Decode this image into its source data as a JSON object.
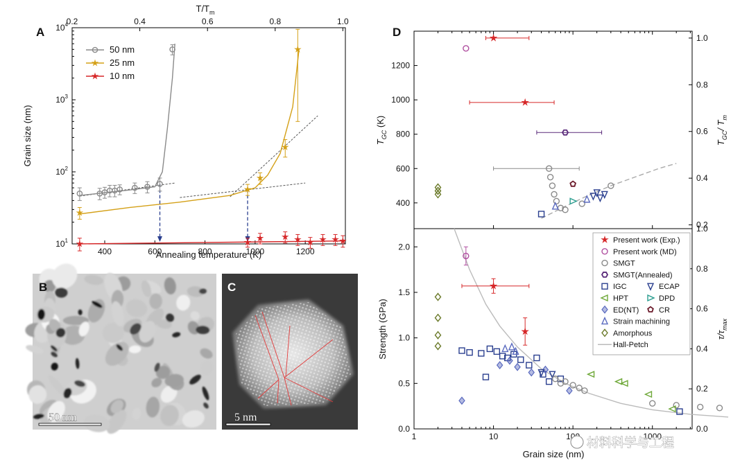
{
  "panels": {
    "A": "A",
    "B": "B",
    "C": "C",
    "D": "D"
  },
  "colors": {
    "gray": "#8a8a8a",
    "gold": "#d4a017",
    "red": "#d62728",
    "navy": "#2a3f8f",
    "purple": "#b04fa0",
    "green": "#6ea838",
    "teal": "#2a9d8f",
    "olive": "#6b7a2a",
    "hp": "#bbbbbb"
  },
  "chart_data": [
    {
      "id": "A",
      "type": "line",
      "title": "",
      "xlabel": "Annealing temperature (K)",
      "ylabel": "Grain size (nm)",
      "x2label": "T/T",
      "x2label_sub": "m",
      "xlim": [
        270,
        1360
      ],
      "ylim_log": [
        1,
        4
      ],
      "xticks": [
        400,
        600,
        800,
        1000,
        1200
      ],
      "x2ticks": [
        "0.2",
        "0.4",
        "0.6",
        "0.8",
        "1.0"
      ],
      "x2tick_x": [
        270,
        540,
        810,
        1080,
        1350
      ],
      "yticks": [
        {
          "v": 1,
          "base": "10",
          "exp": "1"
        },
        {
          "v": 2,
          "base": "10",
          "exp": "2"
        },
        {
          "v": 3,
          "base": "10",
          "exp": "3"
        },
        {
          "v": 4,
          "base": "10",
          "exp": "4"
        }
      ],
      "legend": [
        {
          "label": "50 nm",
          "color": "#8a8a8a",
          "marker": "circle"
        },
        {
          "label": "25 nm",
          "color": "#d4a017",
          "marker": "star"
        },
        {
          "label": "10 nm",
          "color": "#d62728",
          "marker": "star"
        }
      ],
      "series": [
        {
          "name": "50 nm",
          "color": "#8a8a8a",
          "marker": "circle",
          "x": [
            300,
            380,
            400,
            420,
            440,
            460,
            520,
            570,
            620,
            670
          ],
          "y": [
            50,
            50,
            52,
            55,
            55,
            57,
            60,
            62,
            68,
            5000
          ],
          "err": [
            10,
            9,
            9,
            10,
            10,
            9,
            10,
            11,
            14,
            800
          ]
        },
        {
          "name": "25 nm",
          "color": "#d4a017",
          "marker": "star",
          "x": [
            300,
            970,
            1020,
            1120,
            1170
          ],
          "y": [
            27,
            57,
            82,
            220,
            5000
          ],
          "err": [
            5,
            10,
            15,
            60,
            4500
          ]
        },
        {
          "name": "10 nm",
          "color": "#d62728",
          "marker": "star",
          "x": [
            300,
            970,
            1020,
            1120,
            1170,
            1220,
            1270,
            1320,
            1350
          ],
          "y": [
            10,
            10.5,
            12,
            12.5,
            11.5,
            10.5,
            11.5,
            11.5,
            11
          ],
          "err": [
            2,
            1.5,
            2,
            2.2,
            2,
            1.8,
            2,
            2,
            2
          ]
        }
      ],
      "fits": [
        {
          "color": "#555",
          "dash": true,
          "x": [
            300,
            680
          ],
          "y": [
            46,
            70
          ]
        },
        {
          "color": "#555",
          "dash": true,
          "x": [
            700,
            1200
          ],
          "y": [
            44,
            70
          ]
        },
        {
          "color": "#555",
          "dash": true,
          "x": [
            900,
            1250
          ],
          "y": [
            45,
            600
          ]
        },
        {
          "color": "#d4a017",
          "dash": false,
          "x": [
            300,
            500,
            700,
            900,
            1000,
            1050,
            1100,
            1150,
            1175
          ],
          "y": [
            26,
            32,
            38,
            47,
            60,
            90,
            180,
            800,
            5000
          ]
        },
        {
          "color": "#8a8a8a",
          "dash": false,
          "x": [
            300,
            500,
            600,
            630,
            650,
            670,
            680
          ],
          "y": [
            47,
            56,
            62,
            100,
            400,
            2000,
            6000
          ]
        },
        {
          "color": "#d62728",
          "dash": false,
          "x": [
            300,
            1360
          ],
          "y": [
            10,
            11
          ]
        }
      ],
      "arrows": [
        {
          "x": 620,
          "from": 68
        },
        {
          "x": 970,
          "from": 57
        }
      ]
    },
    {
      "id": "D_top",
      "type": "scatter",
      "xlabel": "",
      "ylabel": "T",
      "ylabel_sub": "GC",
      "ylabel_tail": " (K)",
      "y2label": "T",
      "y2label_sub": "GC",
      "y2label_tail": "/ T",
      "y2label_sub2": "m",
      "xlim_log": [
        0,
        3.5
      ],
      "ylim": [
        250,
        1400
      ],
      "yticks": [
        400,
        600,
        800,
        1000,
        1200
      ],
      "y2ticks": [
        "0.2",
        "0.4",
        "0.6",
        "0.8",
        "1.0"
      ],
      "y2tick_vals": [
        272,
        544,
        816,
        1088,
        1360
      ],
      "points": [
        {
          "x": 10,
          "y": 1360,
          "c": "#d62728",
          "m": "star",
          "xerr": [
            2,
            18
          ]
        },
        {
          "x": 25,
          "y": 985,
          "c": "#d62728",
          "m": "star",
          "xerr": [
            20,
            33
          ]
        },
        {
          "x": 4.5,
          "y": 1300,
          "c": "#b04fa0",
          "m": "circle"
        },
        {
          "x": 80,
          "y": 810,
          "c": "#5a2a7a",
          "m": "hex",
          "xerr": [
            45,
            150
          ]
        },
        {
          "x": 100,
          "y": 510,
          "c": "#6b1a2a",
          "m": "pent"
        },
        {
          "x": 40,
          "y": 335,
          "c": "#2a3f8f",
          "m": "square"
        },
        {
          "x": 100,
          "y": 410,
          "c": "#2a9d8f",
          "m": "triR"
        },
        {
          "x": 50,
          "y": 600,
          "c": "#8a8a8a",
          "m": "circle",
          "xerr": [
            40,
            70
          ]
        },
        {
          "x": 52,
          "y": 550,
          "c": "#8a8a8a",
          "m": "circle"
        },
        {
          "x": 55,
          "y": 500,
          "c": "#8a8a8a",
          "m": "circle"
        },
        {
          "x": 58,
          "y": 450,
          "c": "#8a8a8a",
          "m": "circle"
        },
        {
          "x": 62,
          "y": 410,
          "c": "#8a8a8a",
          "m": "circle"
        },
        {
          "x": 70,
          "y": 370,
          "c": "#8a8a8a",
          "m": "circle"
        },
        {
          "x": 80,
          "y": 360,
          "c": "#8a8a8a",
          "m": "circle"
        },
        {
          "x": 130,
          "y": 395,
          "c": "#8a8a8a",
          "m": "circle"
        },
        {
          "x": 300,
          "y": 500,
          "c": "#8a8a8a",
          "m": "circle"
        },
        {
          "x": 60,
          "y": 380,
          "c": "#5a6abf",
          "m": "tri"
        },
        {
          "x": 150,
          "y": 420,
          "c": "#5a6abf",
          "m": "tri"
        },
        {
          "x": 180,
          "y": 440,
          "c": "#2a3f8f",
          "m": "triD"
        },
        {
          "x": 200,
          "y": 460,
          "c": "#2a3f8f",
          "m": "triD"
        },
        {
          "x": 220,
          "y": 430,
          "c": "#2a3f8f",
          "m": "triD"
        },
        {
          "x": 250,
          "y": 450,
          "c": "#2a3f8f",
          "m": "triD"
        },
        {
          "x": 2,
          "y": 490,
          "c": "#6b7a2a",
          "m": "diamond"
        },
        {
          "x": 2,
          "y": 470,
          "c": "#6b7a2a",
          "m": "diamond"
        },
        {
          "x": 2,
          "y": 450,
          "c": "#6b7a2a",
          "m": "diamond"
        }
      ],
      "curve": {
        "x": [
          40,
          80,
          150,
          300,
          600,
          1200,
          2000
        ],
        "y": [
          310,
          380,
          440,
          500,
          550,
          600,
          630
        ]
      }
    },
    {
      "id": "D_bottom",
      "type": "scatter",
      "xlabel": "Grain size (nm)",
      "ylabel": "Strength (GPa)",
      "y2label": "τ/τ",
      "y2label_sub": "max",
      "xlim_log": [
        0,
        3.5
      ],
      "ylim": [
        0,
        2.2
      ],
      "xticks": [
        {
          "v": 0,
          "t": "1"
        },
        {
          "v": 1,
          "t": "10"
        },
        {
          "v": 2,
          "t": "100"
        },
        {
          "v": 3,
          "t": "1000"
        }
      ],
      "yticks": [
        0,
        0.5,
        1.0,
        1.5,
        2.0
      ],
      "y2ticks": [
        "0.0",
        "0.2",
        "0.4",
        "0.6",
        "0.8",
        "1.0"
      ],
      "points": [
        {
          "x": 10,
          "y": 1.57,
          "c": "#d62728",
          "m": "star",
          "xerr": [
            6,
            18
          ],
          "yerr": 0.08
        },
        {
          "x": 25,
          "y": 1.07,
          "c": "#d62728",
          "m": "star",
          "yerr": 0.15
        },
        {
          "x": 4.5,
          "y": 1.9,
          "c": "#b04fa0",
          "m": "circle",
          "yerr": 0.1
        },
        {
          "x": 4,
          "y": 0.31,
          "c": "#5a6abf",
          "m": "diamondX"
        },
        {
          "x": 2,
          "y": 1.45,
          "c": "#6b7a2a",
          "m": "diamond"
        },
        {
          "x": 2,
          "y": 1.22,
          "c": "#6b7a2a",
          "m": "diamond"
        },
        {
          "x": 2,
          "y": 1.03,
          "c": "#6b7a2a",
          "m": "diamond"
        },
        {
          "x": 2,
          "y": 0.91,
          "c": "#6b7a2a",
          "m": "diamond"
        },
        {
          "x": 4,
          "y": 0.86,
          "c": "#2a3f8f",
          "m": "square"
        },
        {
          "x": 5,
          "y": 0.84,
          "c": "#2a3f8f",
          "m": "square"
        },
        {
          "x": 7,
          "y": 0.83,
          "c": "#2a3f8f",
          "m": "square"
        },
        {
          "x": 8,
          "y": 0.57,
          "c": "#2a3f8f",
          "m": "square"
        },
        {
          "x": 9,
          "y": 0.88,
          "c": "#2a3f8f",
          "m": "square"
        },
        {
          "x": 11,
          "y": 0.85,
          "c": "#2a3f8f",
          "m": "square"
        },
        {
          "x": 13,
          "y": 0.8,
          "c": "#2a3f8f",
          "m": "square"
        },
        {
          "x": 15,
          "y": 0.78,
          "c": "#2a3f8f",
          "m": "square"
        },
        {
          "x": 18,
          "y": 0.82,
          "c": "#2a3f8f",
          "m": "square"
        },
        {
          "x": 22,
          "y": 0.76,
          "c": "#2a3f8f",
          "m": "square"
        },
        {
          "x": 28,
          "y": 0.7,
          "c": "#2a3f8f",
          "m": "square"
        },
        {
          "x": 35,
          "y": 0.78,
          "c": "#2a3f8f",
          "m": "square"
        },
        {
          "x": 42,
          "y": 0.6,
          "c": "#2a3f8f",
          "m": "square"
        },
        {
          "x": 50,
          "y": 0.52,
          "c": "#2a3f8f",
          "m": "square"
        },
        {
          "x": 70,
          "y": 0.55,
          "c": "#2a3f8f",
          "m": "square"
        },
        {
          "x": 12,
          "y": 0.7,
          "c": "#5a6abf",
          "m": "diamondX"
        },
        {
          "x": 16,
          "y": 0.75,
          "c": "#5a6abf",
          "m": "diamondX"
        },
        {
          "x": 20,
          "y": 0.68,
          "c": "#5a6abf",
          "m": "diamondX"
        },
        {
          "x": 30,
          "y": 0.62,
          "c": "#5a6abf",
          "m": "diamondX"
        },
        {
          "x": 45,
          "y": 0.65,
          "c": "#5a6abf",
          "m": "diamondX"
        },
        {
          "x": 90,
          "y": 0.42,
          "c": "#5a6abf",
          "m": "diamondX"
        },
        {
          "x": 14,
          "y": 0.88,
          "c": "#5a6abf",
          "m": "tri"
        },
        {
          "x": 17,
          "y": 0.9,
          "c": "#5a6abf",
          "m": "tri"
        },
        {
          "x": 19,
          "y": 0.85,
          "c": "#5a6abf",
          "m": "tri"
        },
        {
          "x": 40,
          "y": 0.62,
          "c": "#2a3f8f",
          "m": "triD"
        },
        {
          "x": 55,
          "y": 0.6,
          "c": "#2a3f8f",
          "m": "triD"
        },
        {
          "x": 60,
          "y": 0.55,
          "c": "#8a8a8a",
          "m": "circle"
        },
        {
          "x": 70,
          "y": 0.5,
          "c": "#8a8a8a",
          "m": "circle"
        },
        {
          "x": 80,
          "y": 0.52,
          "c": "#8a8a8a",
          "m": "circle"
        },
        {
          "x": 100,
          "y": 0.48,
          "c": "#8a8a8a",
          "m": "circle"
        },
        {
          "x": 120,
          "y": 0.45,
          "c": "#8a8a8a",
          "m": "circle"
        },
        {
          "x": 140,
          "y": 0.42,
          "c": "#8a8a8a",
          "m": "circle"
        },
        {
          "x": 1000,
          "y": 0.28,
          "c": "#8a8a8a",
          "m": "circle"
        },
        {
          "x": 2000,
          "y": 0.26,
          "c": "#8a8a8a",
          "m": "circle"
        },
        {
          "x": 4000,
          "y": 0.24,
          "c": "#8a8a8a",
          "m": "circle"
        },
        {
          "x": 7000,
          "y": 0.23,
          "c": "#8a8a8a",
          "m": "circle"
        },
        {
          "x": 170,
          "y": 0.6,
          "c": "#6ea838",
          "m": "triL"
        },
        {
          "x": 380,
          "y": 0.52,
          "c": "#6ea838",
          "m": "triL"
        },
        {
          "x": 450,
          "y": 0.5,
          "c": "#6ea838",
          "m": "triL"
        },
        {
          "x": 900,
          "y": 0.38,
          "c": "#6ea838",
          "m": "triL"
        },
        {
          "x": 1800,
          "y": 0.22,
          "c": "#6ea838",
          "m": "triL"
        },
        {
          "x": 2200,
          "y": 0.19,
          "c": "#2a3f8f",
          "m": "square"
        }
      ],
      "hallpetch": {
        "x": [
          3.2,
          5,
          8,
          12,
          20,
          40,
          80,
          160,
          400,
          1000,
          3000,
          9000
        ],
        "y": [
          2.2,
          1.75,
          1.37,
          1.13,
          0.9,
          0.66,
          0.5,
          0.39,
          0.28,
          0.21,
          0.16,
          0.13
        ]
      },
      "legend": [
        {
          "label": "Present work (Exp.)",
          "c": "#d62728",
          "m": "star"
        },
        {
          "label": "Present work (MD)",
          "c": "#b04fa0",
          "m": "circle"
        },
        {
          "label": "SMGT",
          "c": "#8a8a8a",
          "m": "circle"
        },
        {
          "label": "SMGT(Annealed)",
          "c": "#5a2a7a",
          "m": "hex"
        },
        {
          "label": "IGC",
          "c": "#2a3f8f",
          "m": "square"
        },
        {
          "label": "ECAP",
          "c": "#2a3f8f",
          "m": "triD"
        },
        {
          "label": "HPT",
          "c": "#6ea838",
          "m": "triL"
        },
        {
          "label": "DPD",
          "c": "#2a9d8f",
          "m": "triR"
        },
        {
          "label": "ED(NT)",
          "c": "#5a6abf",
          "m": "diamondX"
        },
        {
          "label": "CR",
          "c": "#6b1a2a",
          "m": "pent"
        },
        {
          "label": "Strain machining",
          "c": "#5a6abf",
          "m": "tri"
        },
        {
          "label": "Amorphous",
          "c": "#6b7a2a",
          "m": "diamond"
        },
        {
          "label": "Hall-Petch",
          "c": "#bbbbbb",
          "m": "line"
        }
      ]
    }
  ],
  "images": {
    "B": {
      "scale_label": "50 nm"
    },
    "C": {
      "scale_label": "5 nm"
    }
  },
  "watermark": "材料科学与工程"
}
